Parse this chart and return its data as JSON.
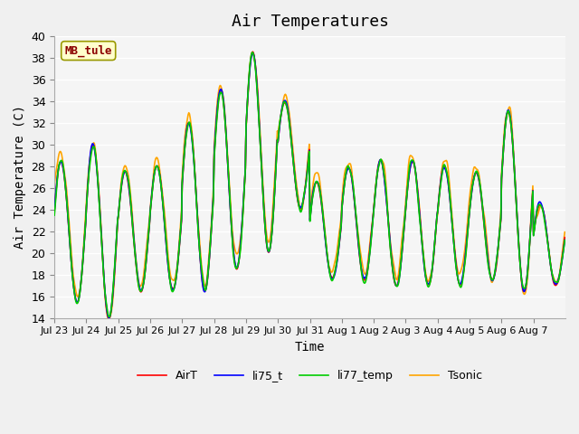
{
  "title": "Air Temperatures",
  "xlabel": "Time",
  "ylabel": "Air Temperature (C)",
  "ylim": [
    14,
    40
  ],
  "yticks": [
    14,
    16,
    18,
    20,
    22,
    24,
    26,
    28,
    30,
    32,
    34,
    36,
    38,
    40
  ],
  "station_label": "MB_tule",
  "legend": [
    "AirT",
    "li75_t",
    "li77_temp",
    "Tsonic"
  ],
  "colors": [
    "#ff0000",
    "#0000ff",
    "#00cc00",
    "#ffa500"
  ],
  "background_color": "#f0f0f0",
  "plot_bg": "#f5f5f5",
  "tick_dates": [
    "Jul 23",
    "Jul 24",
    "Jul 25",
    "Jul 26",
    "Jul 27",
    "Jul 28",
    "Jul 29",
    "Jul 30",
    "Jul 31",
    "Aug 1",
    "Aug 2",
    "Aug 3",
    "Aug 4",
    "Aug 5",
    "Aug 6",
    "Aug 7"
  ],
  "n_days": 16,
  "pts_per_day": 48,
  "seed": 42,
  "day_mins": [
    15.5,
    14.0,
    16.5,
    16.5,
    16.5,
    18.5,
    20.0,
    24.0,
    17.5,
    17.5,
    17.0,
    17.0,
    17.0,
    17.5,
    16.5,
    17.0
  ],
  "day_maxes": [
    28.5,
    30.0,
    27.5,
    28.0,
    32.0,
    35.0,
    38.5,
    34.0,
    26.5,
    28.0,
    28.5,
    28.5,
    28.0,
    27.5,
    33.0,
    24.5
  ],
  "line_width": 1.2
}
